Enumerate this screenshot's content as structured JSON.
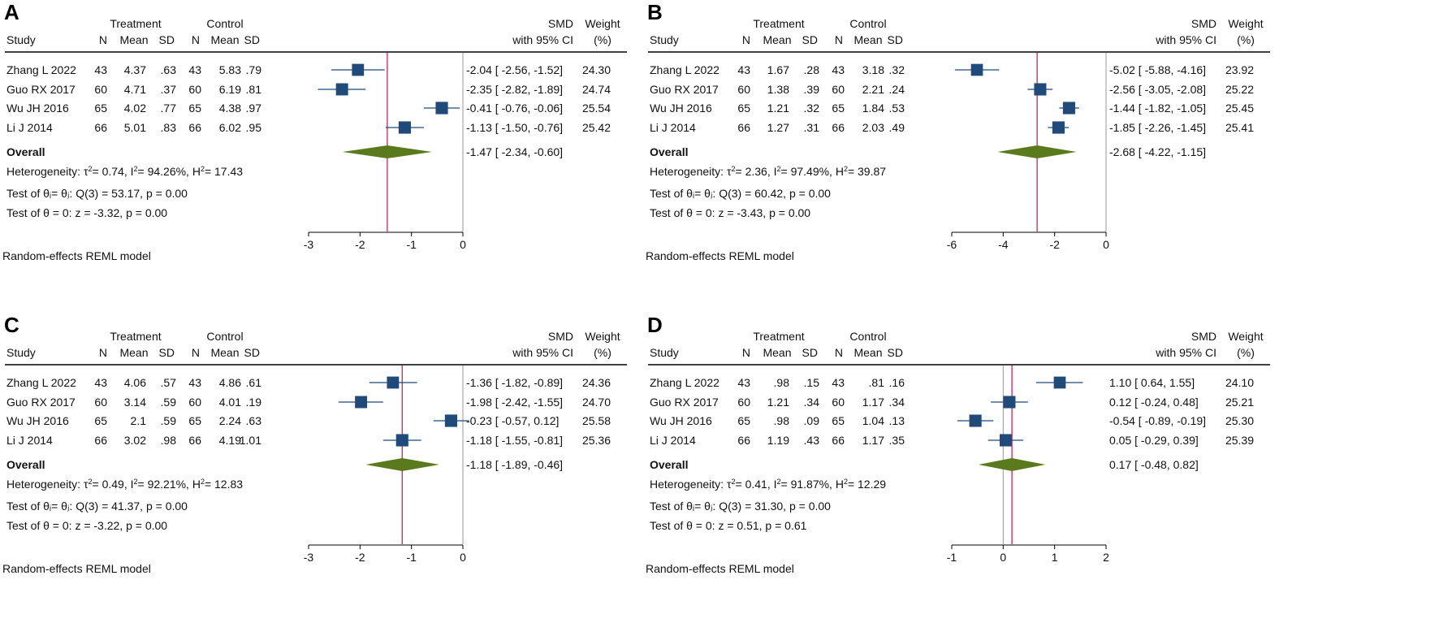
{
  "colors": {
    "marker": "#1f4a7a",
    "diamond": "#5b7a1e",
    "refline": "#c8255a",
    "zeroline": "#9a9a9a"
  },
  "headers": {
    "treatment": "Treatment",
    "control": "Control",
    "study": "Study",
    "n": "N",
    "mean": "Mean",
    "sd": "SD",
    "smd": "SMD",
    "ci": "with 95% CI",
    "weight": "Weight",
    "weight_unit": "(%)"
  },
  "chart_data": [
    {
      "type": "forest",
      "label": "A",
      "xlim": [
        -3,
        0
      ],
      "ticks": [
        "-3",
        "-2",
        "-1",
        "0"
      ],
      "studies": [
        {
          "study": "Zhang L 2022",
          "t_n": "43",
          "t_mean": "4.37",
          "t_sd": ".63",
          "c_n": "43",
          "c_mean": "5.83",
          "c_sd": ".79",
          "smd": -2.04,
          "lo": -2.56,
          "hi": -1.52,
          "ci_text": "-2.04 [ -2.56,  -1.52]",
          "weight": "24.30"
        },
        {
          "study": "Guo RX 2017",
          "t_n": "60",
          "t_mean": "4.71",
          "t_sd": ".37",
          "c_n": "60",
          "c_mean": "6.19",
          "c_sd": ".81",
          "smd": -2.35,
          "lo": -2.82,
          "hi": -1.89,
          "ci_text": "-2.35 [ -2.82,  -1.89]",
          "weight": "24.74"
        },
        {
          "study": "Wu JH 2016",
          "t_n": "65",
          "t_mean": "4.02",
          "t_sd": ".77",
          "c_n": "65",
          "c_mean": "4.38",
          "c_sd": ".97",
          "smd": -0.41,
          "lo": -0.76,
          "hi": -0.06,
          "ci_text": "-0.41 [ -0.76,  -0.06]",
          "weight": "25.54"
        },
        {
          "study": "Li J 2014",
          "t_n": "66",
          "t_mean": "5.01",
          "t_sd": ".83",
          "c_n": "66",
          "c_mean": "6.02",
          "c_sd": ".95",
          "smd": -1.13,
          "lo": -1.5,
          "hi": -0.76,
          "ci_text": "-1.13 [ -1.50,  -0.76]",
          "weight": "25.42"
        }
      ],
      "overall": {
        "label": "Overall",
        "smd": -1.47,
        "lo": -2.34,
        "hi": -0.6,
        "ci_text": "-1.47 [ -2.34,  -0.60]"
      },
      "heterogeneity": {
        "prefix": "Heterogeneity: τ",
        "tau2": "= 0.74, I",
        "i2": "= 94.26%, H",
        "h2": "= 17.43"
      },
      "test_q": "Test of θᵢ= θⱼ: Q(3) = 53.17, p = 0.00",
      "test_z": "Test of θ = 0: z = -3.32, p = 0.00",
      "model": "Random-effects REML model"
    },
    {
      "type": "forest",
      "label": "B",
      "xlim": [
        -6,
        0
      ],
      "ticks": [
        "-6",
        "-4",
        "-2",
        "0"
      ],
      "studies": [
        {
          "study": "Zhang L 2022",
          "t_n": "43",
          "t_mean": "1.67",
          "t_sd": ".28",
          "c_n": "43",
          "c_mean": "3.18",
          "c_sd": ".32",
          "smd": -5.02,
          "lo": -5.88,
          "hi": -4.16,
          "ci_text": "-5.02 [ -5.88,  -4.16]",
          "weight": "23.92"
        },
        {
          "study": "Guo RX 2017",
          "t_n": "60",
          "t_mean": "1.38",
          "t_sd": ".39",
          "c_n": "60",
          "c_mean": "2.21",
          "c_sd": ".24",
          "smd": -2.56,
          "lo": -3.05,
          "hi": -2.08,
          "ci_text": "-2.56 [ -3.05,  -2.08]",
          "weight": "25.22"
        },
        {
          "study": "Wu JH 2016",
          "t_n": "65",
          "t_mean": "1.21",
          "t_sd": ".32",
          "c_n": "65",
          "c_mean": "1.84",
          "c_sd": ".53",
          "smd": -1.44,
          "lo": -1.82,
          "hi": -1.05,
          "ci_text": "-1.44 [ -1.82,  -1.05]",
          "weight": "25.45"
        },
        {
          "study": "Li J 2014",
          "t_n": "66",
          "t_mean": "1.27",
          "t_sd": ".31",
          "c_n": "66",
          "c_mean": "2.03",
          "c_sd": ".49",
          "smd": -1.85,
          "lo": -2.26,
          "hi": -1.45,
          "ci_text": "-1.85 [ -2.26,  -1.45]",
          "weight": "25.41"
        }
      ],
      "overall": {
        "label": "Overall",
        "smd": -2.68,
        "lo": -4.22,
        "hi": -1.15,
        "ci_text": "-2.68 [ -4.22,  -1.15]"
      },
      "heterogeneity": {
        "prefix": "Heterogeneity: τ",
        "tau2": "= 2.36, I",
        "i2": "= 97.49%, H",
        "h2": "= 39.87"
      },
      "test_q": "Test of θᵢ= θⱼ: Q(3) = 60.42, p = 0.00",
      "test_z": "Test of θ = 0: z = -3.43, p = 0.00",
      "model": "Random-effects REML model"
    },
    {
      "type": "forest",
      "label": "C",
      "xlim": [
        -3,
        0
      ],
      "ticks": [
        "-3",
        "-2",
        "-1",
        "0"
      ],
      "studies": [
        {
          "study": "Zhang L 2022",
          "t_n": "43",
          "t_mean": "4.06",
          "t_sd": ".57",
          "c_n": "43",
          "c_mean": "4.86",
          "c_sd": ".61",
          "smd": -1.36,
          "lo": -1.82,
          "hi": -0.89,
          "ci_text": "-1.36 [ -1.82,  -0.89]",
          "weight": "24.36"
        },
        {
          "study": "Guo RX 2017",
          "t_n": "60",
          "t_mean": "3.14",
          "t_sd": ".59",
          "c_n": "60",
          "c_mean": "4.01",
          "c_sd": ".19",
          "smd": -1.98,
          "lo": -2.42,
          "hi": -1.55,
          "ci_text": "-1.98 [ -2.42,  -1.55]",
          "weight": "24.70"
        },
        {
          "study": "Wu JH 2016",
          "t_n": "65",
          "t_mean": "2.1",
          "t_sd": ".59",
          "c_n": "65",
          "c_mean": "2.24",
          "c_sd": ".63",
          "smd": -0.23,
          "lo": -0.57,
          "hi": 0.12,
          "ci_text": "-0.23 [ -0.57,   0.12]",
          "weight": "25.58"
        },
        {
          "study": "Li J 2014",
          "t_n": "66",
          "t_mean": "3.02",
          "t_sd": ".98",
          "c_n": "66",
          "c_mean": "4.19",
          "c_sd": "1.01",
          "smd": -1.18,
          "lo": -1.55,
          "hi": -0.81,
          "ci_text": "-1.18 [ -1.55,  -0.81]",
          "weight": "25.36"
        }
      ],
      "overall": {
        "label": "Overall",
        "smd": -1.18,
        "lo": -1.89,
        "hi": -0.46,
        "ci_text": "-1.18 [ -1.89,  -0.46]"
      },
      "heterogeneity": {
        "prefix": "Heterogeneity: τ",
        "tau2": "= 0.49, I",
        "i2": "= 92.21%, H",
        "h2": "= 12.83"
      },
      "test_q": "Test of θᵢ= θⱼ: Q(3) = 41.37, p = 0.00",
      "test_z": "Test of θ = 0: z = -3.22, p = 0.00",
      "model": "Random-effects REML model"
    },
    {
      "type": "forest",
      "label": "D",
      "xlim": [
        -1,
        2
      ],
      "ticks": [
        "-1",
        "0",
        "1",
        "2"
      ],
      "studies": [
        {
          "study": "Zhang L 2022",
          "t_n": "43",
          "t_mean": ".98",
          "t_sd": ".15",
          "c_n": "43",
          "c_mean": ".81",
          "c_sd": ".16",
          "smd": 1.1,
          "lo": 0.64,
          "hi": 1.55,
          "ci_text": "1.10 [  0.64,   1.55]",
          "weight": "24.10"
        },
        {
          "study": "Guo RX 2017",
          "t_n": "60",
          "t_mean": "1.21",
          "t_sd": ".34",
          "c_n": "60",
          "c_mean": "1.17",
          "c_sd": ".34",
          "smd": 0.12,
          "lo": -0.24,
          "hi": 0.48,
          "ci_text": "0.12 [ -0.24,   0.48]",
          "weight": "25.21"
        },
        {
          "study": "Wu JH 2016",
          "t_n": "65",
          "t_mean": ".98",
          "t_sd": ".09",
          "c_n": "65",
          "c_mean": "1.04",
          "c_sd": ".13",
          "smd": -0.54,
          "lo": -0.89,
          "hi": -0.19,
          "ci_text": "-0.54 [ -0.89,  -0.19]",
          "weight": "25.30"
        },
        {
          "study": "Li J 2014",
          "t_n": "66",
          "t_mean": "1.19",
          "t_sd": ".43",
          "c_n": "66",
          "c_mean": "1.17",
          "c_sd": ".35",
          "smd": 0.05,
          "lo": -0.29,
          "hi": 0.39,
          "ci_text": "0.05 [ -0.29,   0.39]",
          "weight": "25.39"
        }
      ],
      "overall": {
        "label": "Overall",
        "smd": 0.17,
        "lo": -0.48,
        "hi": 0.82,
        "ci_text": "0.17 [ -0.48,   0.82]"
      },
      "heterogeneity": {
        "prefix": "Heterogeneity: τ",
        "tau2": "= 0.41, I",
        "i2": "= 91.87%, H",
        "h2": "= 12.29"
      },
      "test_q": "Test of θᵢ= θⱼ: Q(3) = 31.30, p = 0.00",
      "test_z": "Test of θ = 0: z = 0.51, p = 0.61",
      "model": "Random-effects REML model"
    }
  ]
}
